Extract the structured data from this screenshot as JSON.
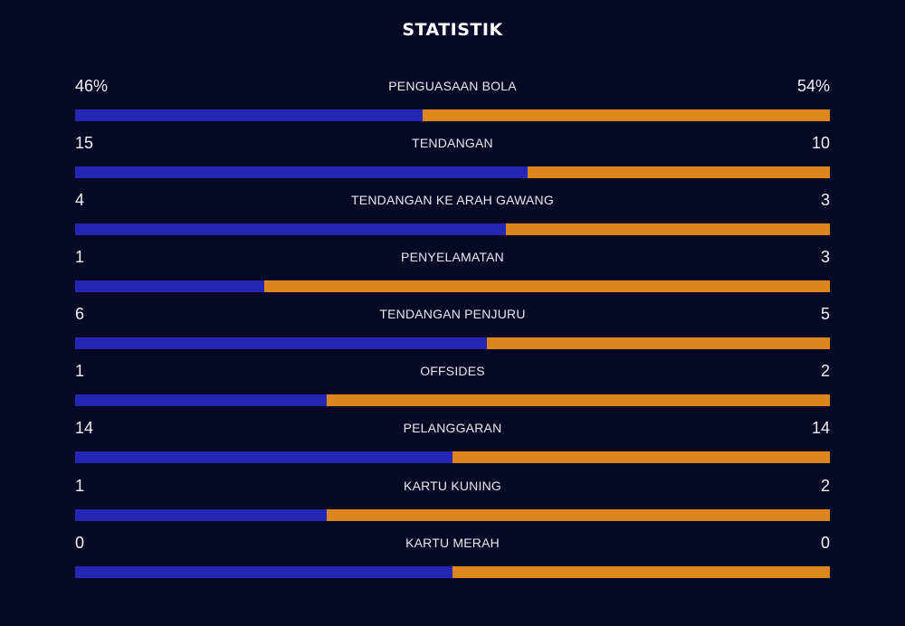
{
  "header": {
    "title": "STATISTIK"
  },
  "colors": {
    "background": "#070826",
    "home_bar": "#2526b4",
    "away_bar": "#dc861b"
  },
  "stats": [
    {
      "label": "PENGUASAAN BOLA",
      "home": "46%",
      "away": "54%",
      "home_share": 0.46
    },
    {
      "label": "TENDANGAN",
      "home": "15",
      "away": "10",
      "home_share": 0.6
    },
    {
      "label": "TENDANGAN KE ARAH GAWANG",
      "home": "4",
      "away": "3",
      "home_share": 0.571
    },
    {
      "label": "PENYELAMATAN",
      "home": "1",
      "away": "3",
      "home_share": 0.25
    },
    {
      "label": "TENDANGAN PENJURU",
      "home": "6",
      "away": "5",
      "home_share": 0.545
    },
    {
      "label": "OFFSIDES",
      "home": "1",
      "away": "2",
      "home_share": 0.333
    },
    {
      "label": "PELANGGARAN",
      "home": "14",
      "away": "14",
      "home_share": 0.5
    },
    {
      "label": "KARTU KUNING",
      "home": "1",
      "away": "2",
      "home_share": 0.333
    },
    {
      "label": "KARTU MERAH",
      "home": "0",
      "away": "0",
      "home_share": 0.5
    }
  ]
}
